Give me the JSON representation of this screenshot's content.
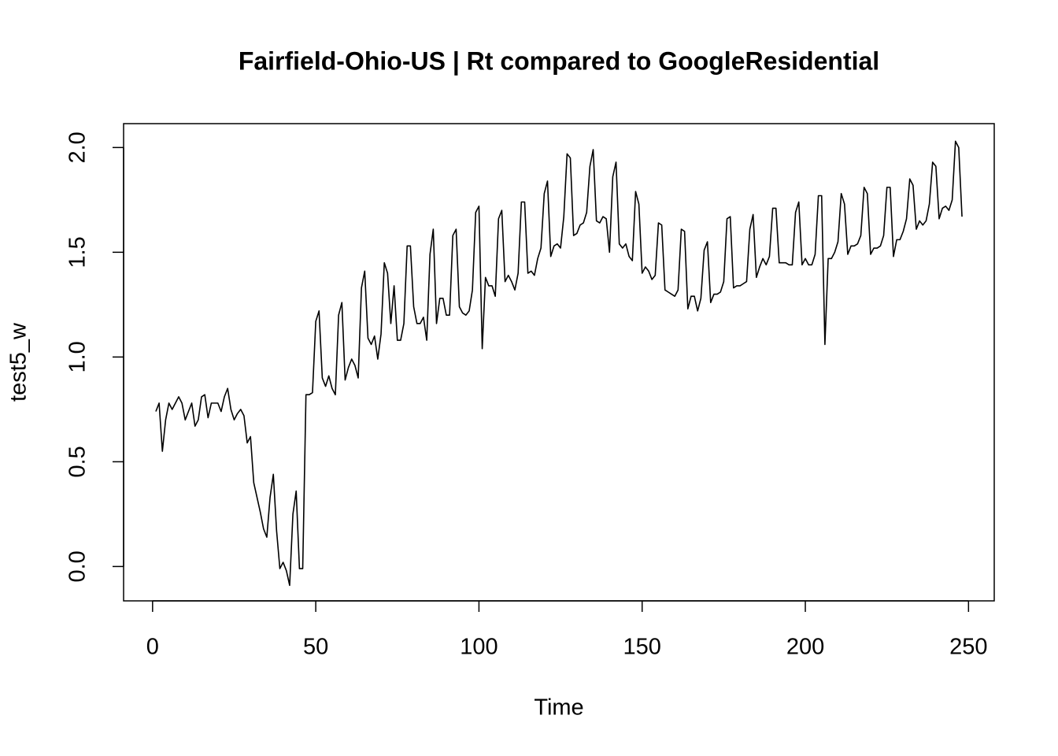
{
  "chart_data": {
    "type": "line",
    "title": "Fairfield-Ohio-US | Rt compared to GoogleResidential",
    "xlabel": "Time",
    "ylabel": "test5_w",
    "color": "#000000",
    "xlim": [
      -8.88,
      257.88
    ],
    "ylim": [
      -0.164,
      2.114
    ],
    "xticks": [
      0,
      50,
      100,
      150,
      200,
      250
    ],
    "yticks": [
      {
        "value": 0,
        "label": "0.0"
      },
      {
        "value": 0.5,
        "label": "0.5"
      },
      {
        "value": 1,
        "label": "1.0"
      },
      {
        "value": 1.5,
        "label": "1.5"
      },
      {
        "value": 2,
        "label": "2.0"
      }
    ],
    "x": [
      1,
      2,
      3,
      4,
      5,
      6,
      7,
      8,
      9,
      10,
      11,
      12,
      13,
      14,
      15,
      16,
      17,
      18,
      19,
      20,
      21,
      22,
      23,
      24,
      25,
      26,
      27,
      28,
      29,
      30,
      31,
      32,
      33,
      34,
      35,
      36,
      37,
      38,
      39,
      40,
      41,
      42,
      43,
      44,
      45,
      46,
      47,
      48,
      49,
      50,
      51,
      52,
      53,
      54,
      55,
      56,
      57,
      58,
      59,
      60,
      61,
      62,
      63,
      64,
      65,
      66,
      67,
      68,
      69,
      70,
      71,
      72,
      73,
      74,
      75,
      76,
      77,
      78,
      79,
      80,
      81,
      82,
      83,
      84,
      85,
      86,
      87,
      88,
      89,
      90,
      91,
      92,
      93,
      94,
      95,
      96,
      97,
      98,
      99,
      100,
      101,
      102,
      103,
      104,
      105,
      106,
      107,
      108,
      109,
      110,
      111,
      112,
      113,
      114,
      115,
      116,
      117,
      118,
      119,
      120,
      121,
      122,
      123,
      124,
      125,
      126,
      127,
      128,
      129,
      130,
      131,
      132,
      133,
      134,
      135,
      136,
      137,
      138,
      139,
      140,
      141,
      142,
      143,
      144,
      145,
      146,
      147,
      148,
      149,
      150,
      151,
      152,
      153,
      154,
      155,
      156,
      157,
      158,
      159,
      160,
      161,
      162,
      163,
      164,
      165,
      166,
      167,
      168,
      169,
      170,
      171,
      172,
      173,
      174,
      175,
      176,
      177,
      178,
      179,
      180,
      181,
      182,
      183,
      184,
      185,
      186,
      187,
      188,
      189,
      190,
      191,
      192,
      193,
      194,
      195,
      196,
      197,
      198,
      199,
      200,
      201,
      202,
      203,
      204,
      205,
      206,
      207,
      208,
      209,
      210,
      211,
      212,
      213,
      214,
      215,
      216,
      217,
      218,
      219,
      220,
      221,
      222,
      223,
      224,
      225,
      226,
      227,
      228,
      229,
      230,
      231,
      232,
      233,
      234,
      235,
      236,
      237,
      238,
      239,
      240,
      241,
      242,
      243,
      244,
      245,
      246,
      247,
      248
    ],
    "values": [
      0.74,
      0.78,
      0.55,
      0.7,
      0.78,
      0.75,
      0.78,
      0.81,
      0.78,
      0.7,
      0.74,
      0.78,
      0.67,
      0.7,
      0.81,
      0.82,
      0.71,
      0.78,
      0.78,
      0.78,
      0.74,
      0.81,
      0.85,
      0.75,
      0.7,
      0.73,
      0.75,
      0.72,
      0.59,
      0.62,
      0.4,
      0.33,
      0.26,
      0.18,
      0.14,
      0.33,
      0.44,
      0.17,
      -0.01,
      0.02,
      -0.02,
      -0.09,
      0.25,
      0.36,
      -0.01,
      -0.01,
      0.82,
      0.82,
      0.83,
      1.17,
      1.22,
      0.9,
      0.86,
      0.91,
      0.85,
      0.82,
      1.2,
      1.26,
      0.89,
      0.95,
      0.99,
      0.96,
      0.9,
      1.33,
      1.41,
      1.09,
      1.06,
      1.1,
      0.99,
      1.11,
      1.45,
      1.4,
      1.16,
      1.34,
      1.08,
      1.08,
      1.16,
      1.53,
      1.53,
      1.24,
      1.16,
      1.16,
      1.19,
      1.08,
      1.49,
      1.61,
      1.16,
      1.28,
      1.28,
      1.2,
      1.2,
      1.58,
      1.61,
      1.24,
      1.21,
      1.2,
      1.22,
      1.32,
      1.69,
      1.72,
      1.04,
      1.38,
      1.34,
      1.34,
      1.29,
      1.66,
      1.7,
      1.36,
      1.39,
      1.36,
      1.32,
      1.4,
      1.74,
      1.74,
      1.4,
      1.41,
      1.39,
      1.47,
      1.52,
      1.78,
      1.84,
      1.48,
      1.53,
      1.54,
      1.52,
      1.67,
      1.97,
      1.95,
      1.58,
      1.59,
      1.63,
      1.64,
      1.69,
      1.91,
      1.99,
      1.65,
      1.64,
      1.67,
      1.66,
      1.5,
      1.86,
      1.93,
      1.54,
      1.52,
      1.54,
      1.48,
      1.46,
      1.79,
      1.73,
      1.4,
      1.43,
      1.41,
      1.37,
      1.39,
      1.64,
      1.63,
      1.32,
      1.31,
      1.3,
      1.29,
      1.32,
      1.61,
      1.6,
      1.23,
      1.29,
      1.29,
      1.22,
      1.28,
      1.51,
      1.55,
      1.26,
      1.3,
      1.3,
      1.31,
      1.36,
      1.66,
      1.67,
      1.33,
      1.34,
      1.34,
      1.35,
      1.36,
      1.61,
      1.68,
      1.38,
      1.43,
      1.47,
      1.44,
      1.48,
      1.71,
      1.71,
      1.45,
      1.45,
      1.45,
      1.44,
      1.44,
      1.69,
      1.74,
      1.44,
      1.47,
      1.44,
      1.44,
      1.49,
      1.77,
      1.77,
      1.06,
      1.47,
      1.47,
      1.5,
      1.55,
      1.78,
      1.73,
      1.49,
      1.53,
      1.53,
      1.54,
      1.58,
      1.81,
      1.78,
      1.49,
      1.52,
      1.52,
      1.53,
      1.58,
      1.81,
      1.81,
      1.48,
      1.56,
      1.56,
      1.6,
      1.66,
      1.85,
      1.82,
      1.61,
      1.65,
      1.63,
      1.65,
      1.73,
      1.93,
      1.91,
      1.66,
      1.71,
      1.72,
      1.7,
      1.75,
      2.03,
      2.0,
      1.67
    ]
  }
}
